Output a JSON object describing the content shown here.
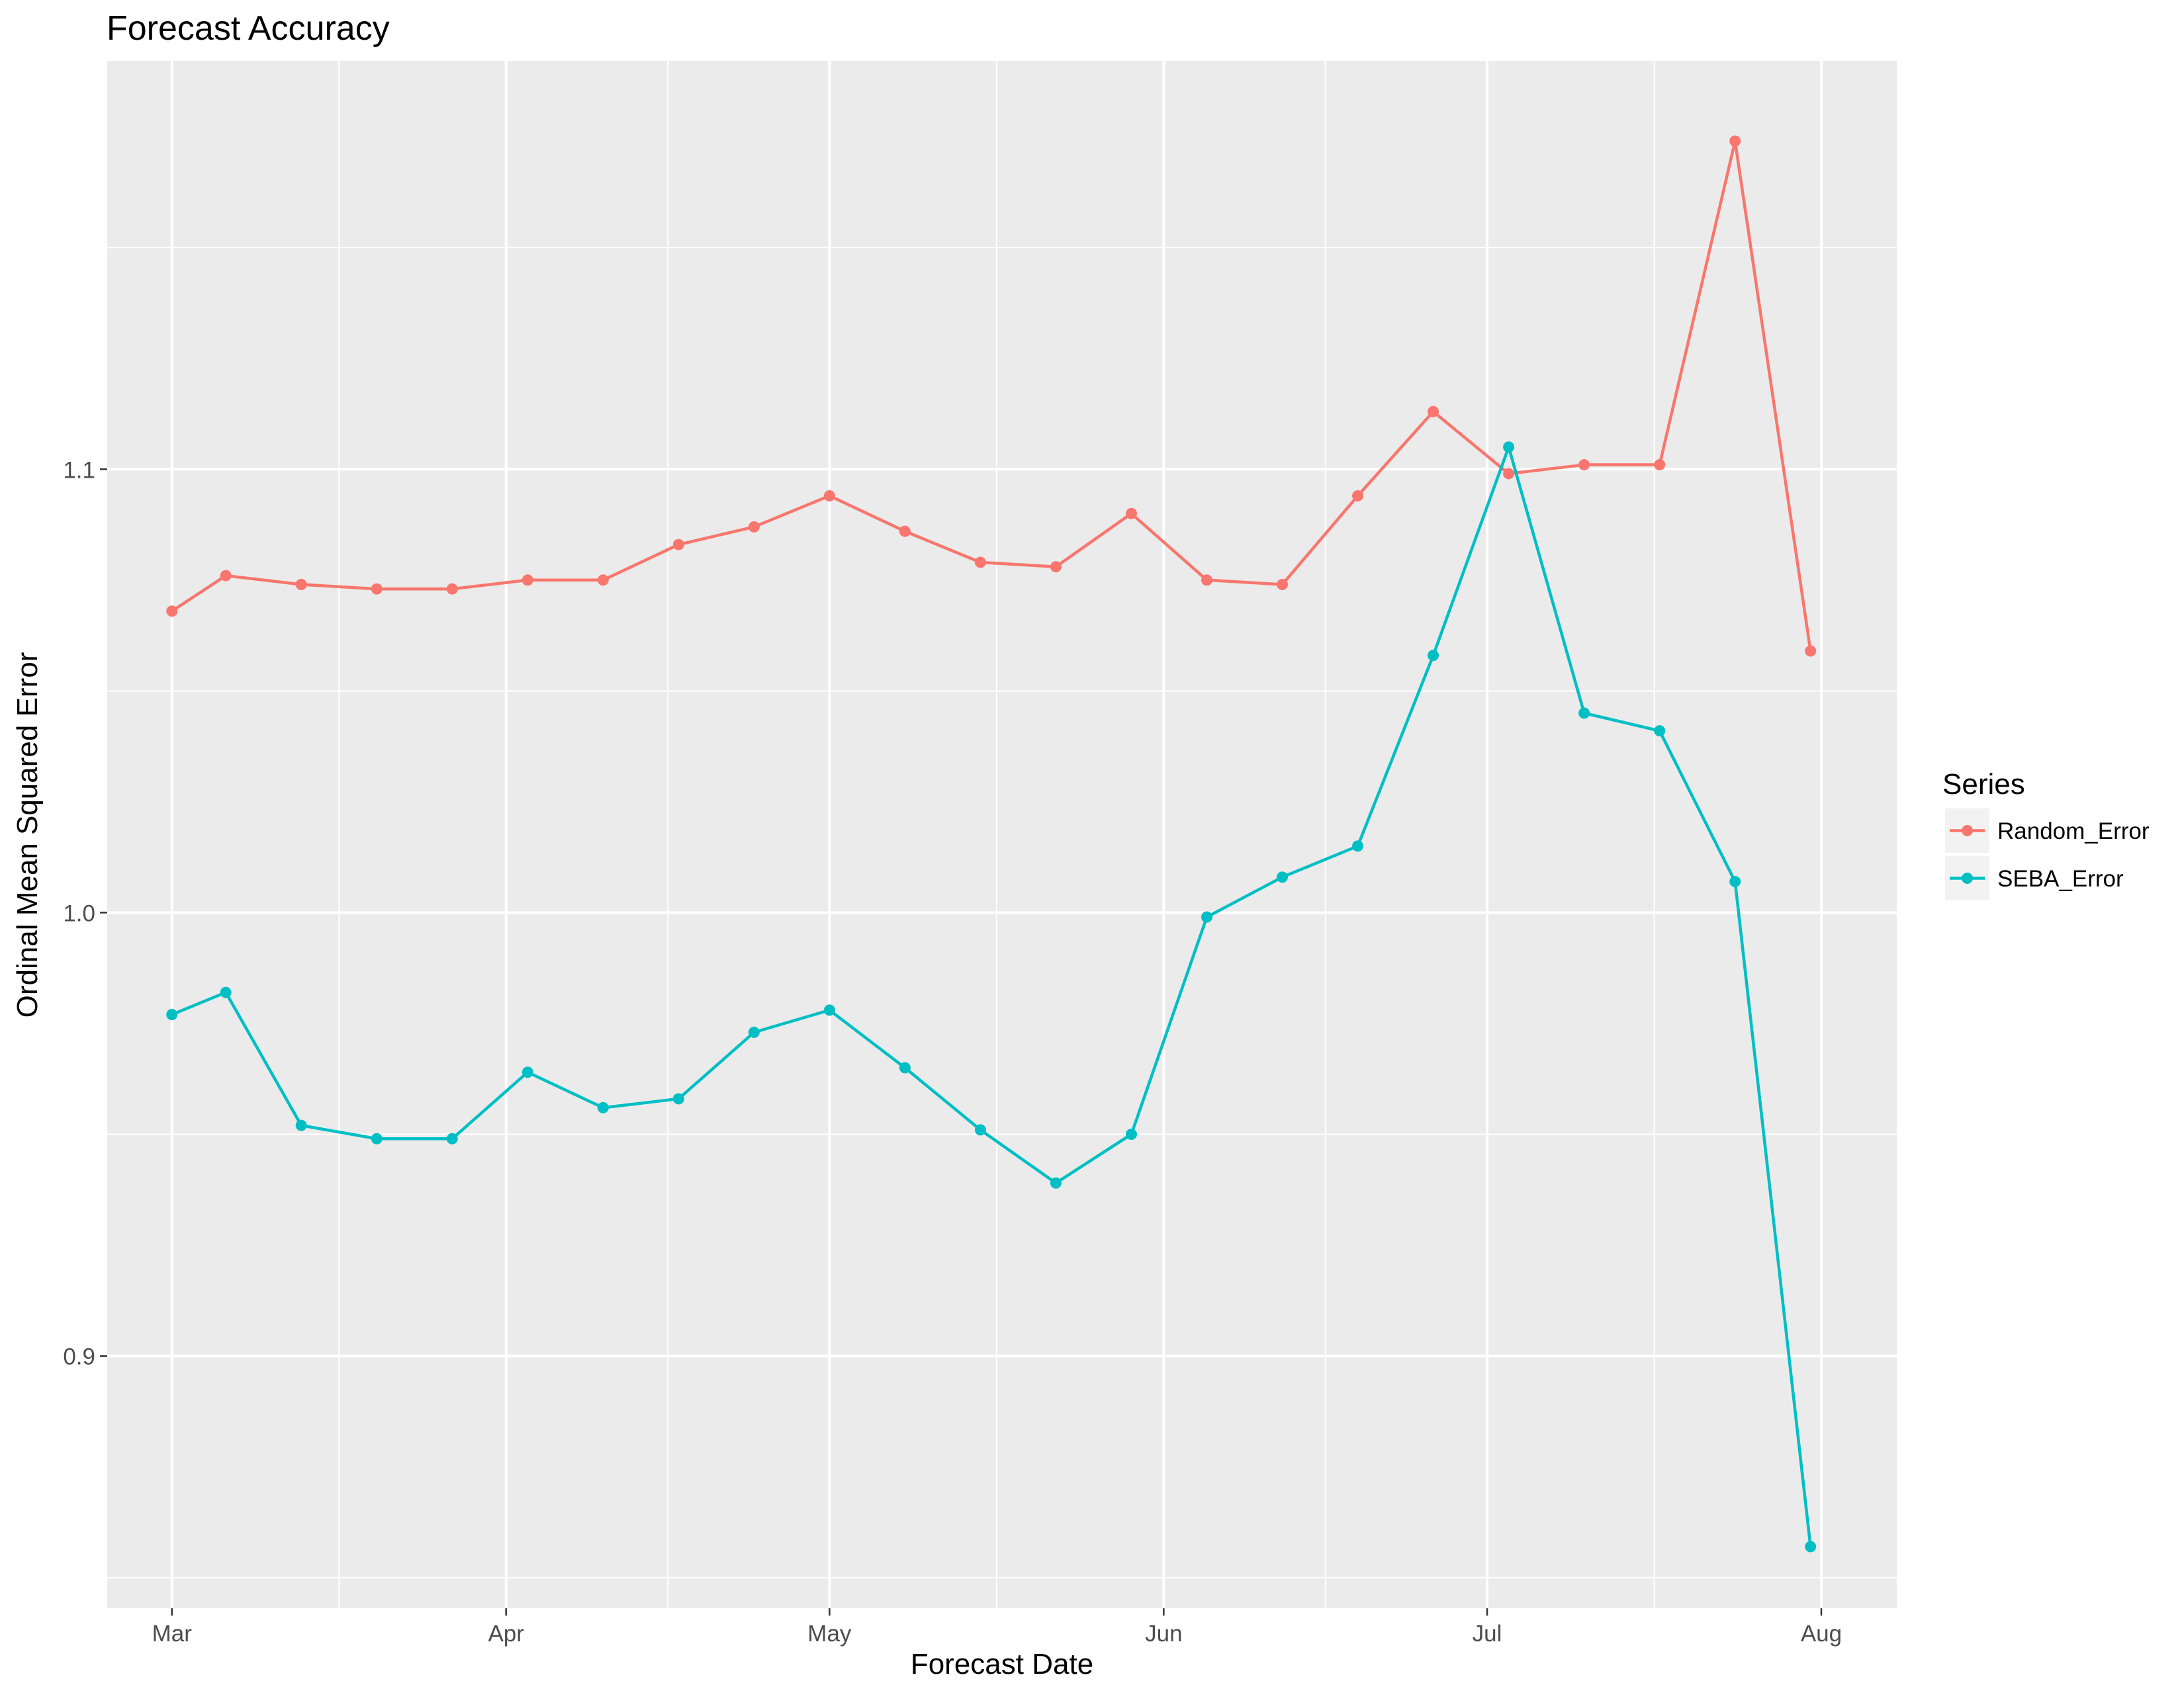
{
  "chart_data": {
    "type": "line",
    "title": "Forecast Accuracy",
    "xlabel": "Forecast Date",
    "ylabel": "Ordinal Mean Squared Error",
    "x_tick_labels": [
      "Mar",
      "Apr",
      "May",
      "Jun",
      "Jul",
      "Aug"
    ],
    "x_tick_dates": [
      "2018-03-01",
      "2018-04-01",
      "2018-05-01",
      "2018-06-01",
      "2018-07-01",
      "2018-08-01"
    ],
    "x_range": [
      "2018-02-23",
      "2018-08-08"
    ],
    "y_tick_labels": [
      "0.9",
      "1.0",
      "1.1"
    ],
    "y_ticks": [
      0.9,
      1.0,
      1.1
    ],
    "ylim": [
      0.8431,
      1.1921
    ],
    "grid": true,
    "legend_title": "Series",
    "legend_position": "right",
    "x": [
      "2018-03-01",
      "2018-03-06",
      "2018-03-13",
      "2018-03-20",
      "2018-03-27",
      "2018-04-03",
      "2018-04-10",
      "2018-04-17",
      "2018-04-24",
      "2018-05-01",
      "2018-05-08",
      "2018-05-15",
      "2018-05-22",
      "2018-05-29",
      "2018-06-05",
      "2018-06-12",
      "2018-06-19",
      "2018-06-26",
      "2018-07-03",
      "2018-07-10",
      "2018-07-17",
      "2018-07-24",
      "2018-07-31"
    ],
    "series": [
      {
        "name": "Random_Error",
        "color": "#F8766D",
        "values": [
          1.068,
          1.076,
          1.074,
          1.073,
          1.073,
          1.075,
          1.075,
          1.083,
          1.087,
          1.094,
          1.086,
          1.079,
          1.078,
          1.09,
          1.075,
          1.074,
          1.094,
          1.113,
          1.099,
          1.101,
          1.101,
          1.174,
          1.059
        ]
      },
      {
        "name": "SEBA_Error",
        "color": "#00BFC4",
        "values": [
          0.977,
          0.982,
          0.952,
          0.949,
          0.949,
          0.964,
          0.956,
          0.958,
          0.973,
          0.978,
          0.965,
          0.951,
          0.939,
          0.95,
          0.999,
          1.008,
          1.015,
          1.058,
          1.105,
          1.045,
          1.041,
          1.007,
          0.857
        ]
      }
    ]
  }
}
